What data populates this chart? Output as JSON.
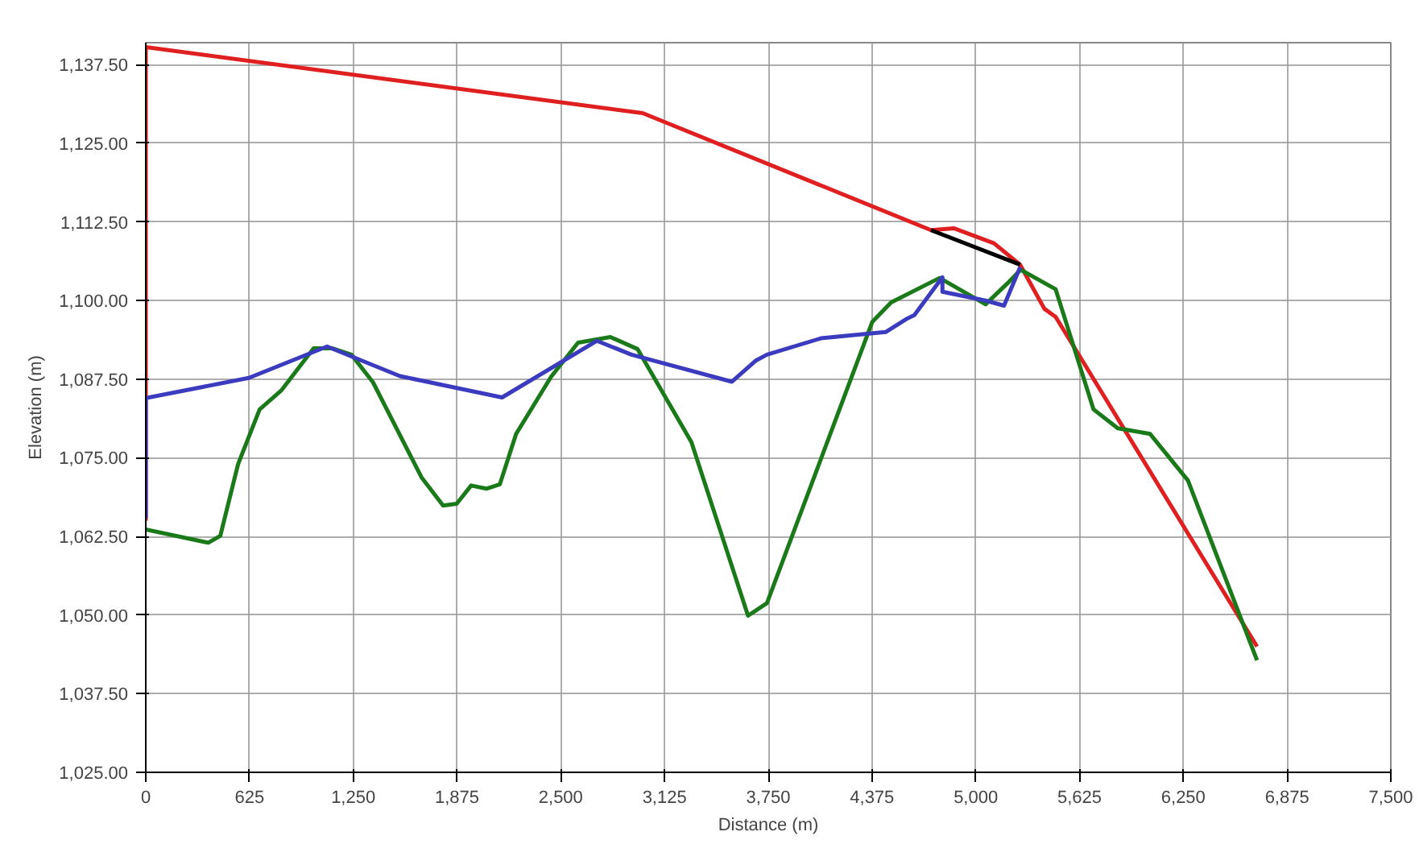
{
  "chart_data": {
    "type": "line",
    "xlabel": "Distance (m)",
    "ylabel": "Elevation (m)",
    "xlim": [
      0,
      7500
    ],
    "ylim": [
      1025,
      1141
    ],
    "xticks": [
      0,
      625,
      {
        "value": 1250,
        "label": "1,250"
      },
      {
        "value": 1875,
        "label": "1,875"
      },
      {
        "value": 2500,
        "label": "2,500"
      },
      {
        "value": 3125,
        "label": "3,125"
      },
      {
        "value": 3750,
        "label": "3,750"
      },
      {
        "value": 4375,
        "label": "4,375"
      },
      {
        "value": 5000,
        "label": "5,000"
      },
      {
        "value": 5625,
        "label": "5,625"
      },
      {
        "value": 6250,
        "label": "6,250"
      },
      {
        "value": 6875,
        "label": "6,875"
      },
      {
        "value": 7500,
        "label": "7,500"
      }
    ],
    "yticks": [
      {
        "value": 1025,
        "label": "1,025.00"
      },
      {
        "value": 1037.5,
        "label": "1,037.50"
      },
      {
        "value": 1050,
        "label": "1,050.00"
      },
      {
        "value": 1062.5,
        "label": "1,062.50"
      },
      {
        "value": 1075,
        "label": "1,075.00"
      },
      {
        "value": 1087.5,
        "label": "1,087.50"
      },
      {
        "value": 1100,
        "label": "1,100.00"
      },
      {
        "value": 1112.5,
        "label": "1,112.50"
      },
      {
        "value": 1125,
        "label": "1,125.00"
      },
      {
        "value": 1137.5,
        "label": "1,137.50"
      }
    ],
    "grid": true,
    "line_style": "solid",
    "series": [
      {
        "color": "#e02020",
        "x": [
          0,
          0,
          2994,
          4730,
          4867,
          5110,
          5267,
          5413,
          5481,
          6694
        ],
        "values": [
          1065,
          1140.3,
          1129.8,
          1111.2,
          1111.5,
          1109.1,
          1105.7,
          1098.7,
          1097.4,
          1045
        ]
      },
      {
        "color": "#000000",
        "x": [
          4730,
          5267
        ],
        "values": [
          1111.2,
          1105.7
        ]
      },
      {
        "color": "#1a7a1a",
        "x": [
          0,
          377,
          449,
          556,
          686,
          816,
          1011,
          1125,
          1239,
          1369,
          1661,
          1791,
          1873,
          1960,
          2052,
          2133,
          2231,
          2442,
          2604,
          2799,
          2962,
          3287,
          3628,
          3742,
          4376,
          4490,
          4782,
          5059,
          5189,
          5270,
          5481,
          5709,
          5855,
          6050,
          6278,
          6694
        ],
        "values": [
          1063.6,
          1061.5,
          1062.6,
          1074,
          1082.7,
          1085.7,
          1092.4,
          1092.4,
          1091.4,
          1087,
          1071.9,
          1067.4,
          1067.7,
          1070.6,
          1070.1,
          1070.8,
          1078.8,
          1087.9,
          1093.3,
          1094.2,
          1092.3,
          1077.5,
          1049.9,
          1051.9,
          1096.6,
          1099.7,
          1103.6,
          1099.4,
          1102.7,
          1104.9,
          1101.8,
          1082.7,
          1079.7,
          1078.8,
          1071.4,
          1042.8
        ]
      },
      {
        "color": "#3b3bbf",
        "x": [
          0,
          0,
          621,
          1092,
          1531,
          2146,
          2718,
          2926,
          3531,
          3677,
          3742,
          4067,
          4457,
          4584,
          4630,
          4799,
          4799,
          5059,
          5170,
          5267
        ],
        "values": [
          1065.4,
          1084.5,
          1087.7,
          1092.7,
          1088,
          1084.6,
          1093.6,
          1091.4,
          1087.1,
          1090.5,
          1091.4,
          1094,
          1095,
          1097.1,
          1097.7,
          1103.7,
          1101.4,
          1100,
          1099.2,
          1105.3
        ]
      }
    ]
  }
}
